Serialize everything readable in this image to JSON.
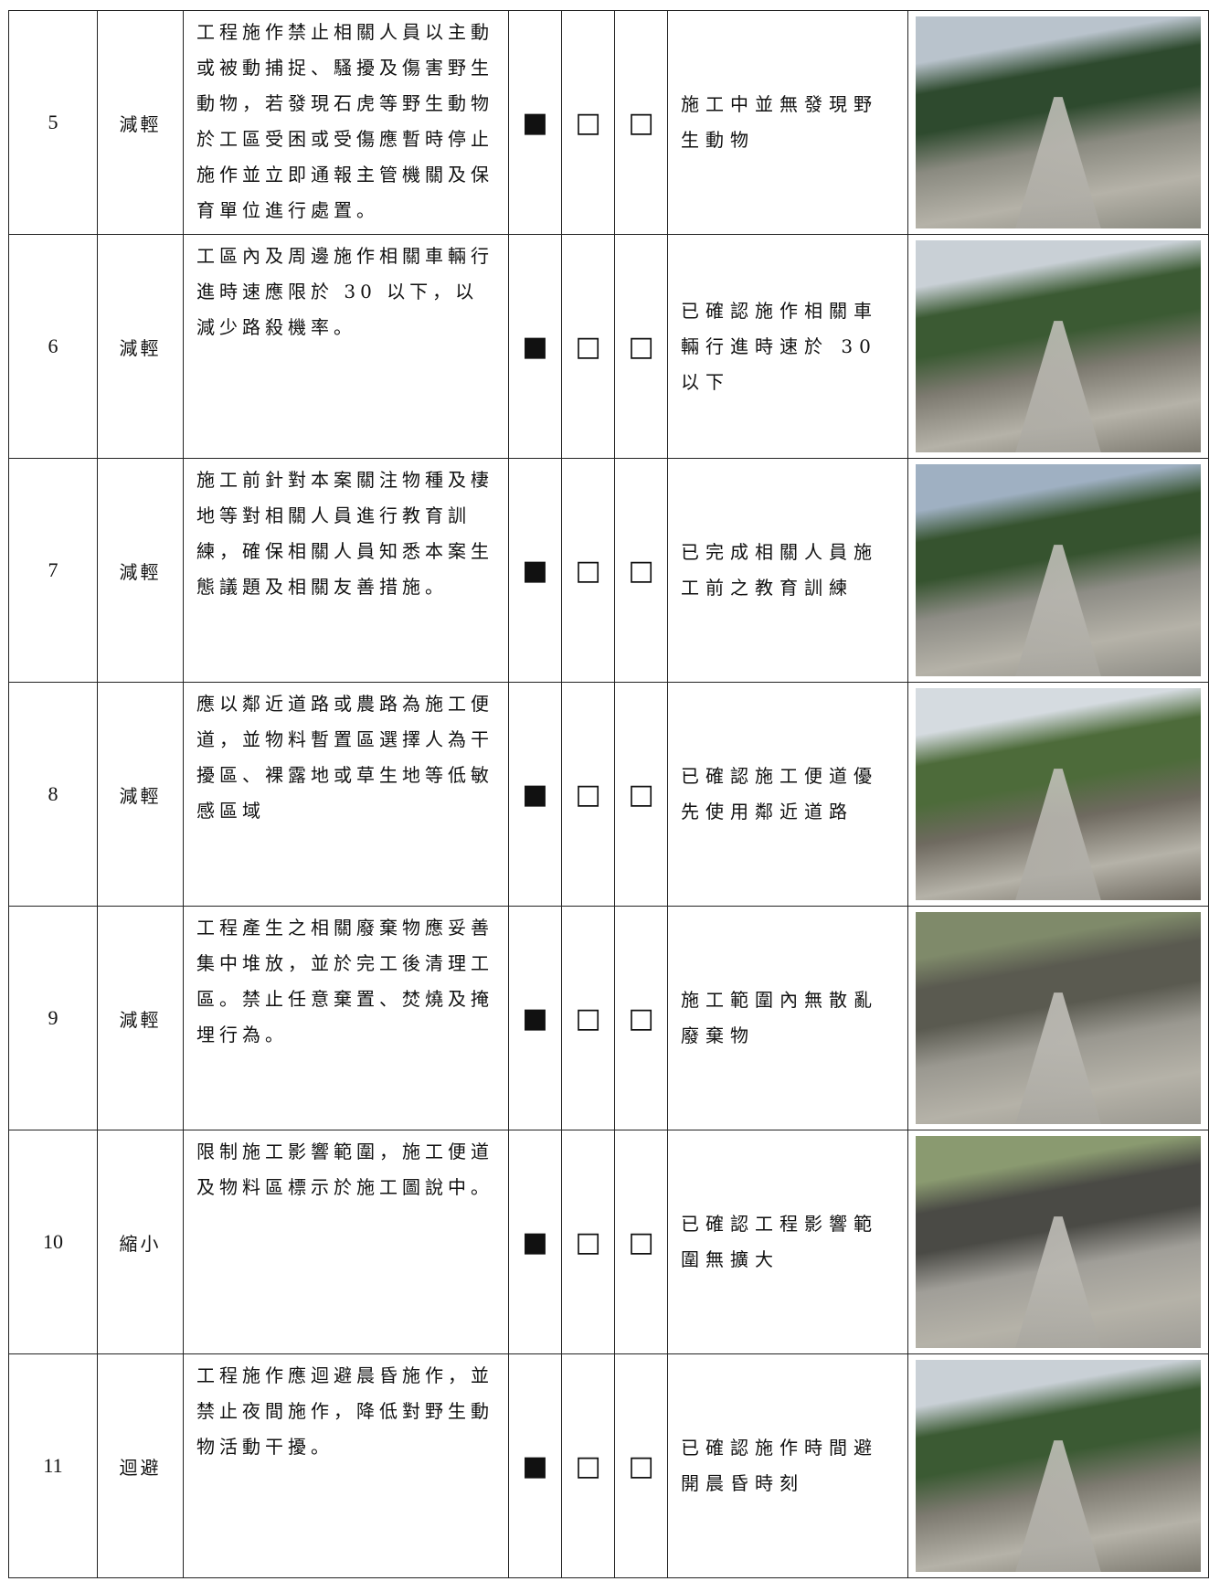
{
  "table": {
    "rows": [
      [
        "5",
        "減輕",
        "工程施作禁止相關人員以主動或被動捕捉、騷擾及傷害野生動物，若發現石虎等野生動物於工區受困或受傷應暫時停止施作並立即通報主管機關及保育單位進行處置。",
        "■",
        "□",
        "□",
        "施工中並無發現野生動物"
      ],
      [
        "6",
        "減輕",
        "工區內及周邊施作相關車輛行進時速應限於 30 以下，以減少路殺機率。",
        "■",
        "□",
        "□",
        "已確認施作相關車輛行進時速於 30 以下"
      ],
      [
        "7",
        "減輕",
        "施工前針對本案關注物種及棲地等對相關人員進行教育訓練，確保相關人員知悉本案生態議題及相關友善措施。",
        "■",
        "□",
        "□",
        "已完成相關人員施工前之教育訓練"
      ],
      [
        "8",
        "減輕",
        "應以鄰近道路或農路為施工便道，並物料暫置區選擇人為干擾區、裸露地或草生地等低敏感區域",
        "■",
        "□",
        "□",
        "已確認施工便道優先使用鄰近道路"
      ],
      [
        "9",
        "減輕",
        "工程產生之相關廢棄物應妥善集中堆放，並於完工後清理工區。禁止任意棄置、焚燒及掩埋行為。",
        "■",
        "□",
        "□",
        "施工範圍內無散亂廢棄物"
      ],
      [
        "10",
        "縮小",
        "限制施工影響範圍，施工便道及物料區標示於施工圖說中。",
        "■",
        "□",
        "□",
        "已確認工程影響範圍無擴大"
      ],
      [
        "11",
        "迴避",
        "工程施作應迴避晨昏施作，並禁止夜間施作，降低對野生動物活動干擾。",
        "■",
        "□",
        "□",
        "已確認施作時間避開晨昏時刻"
      ]
    ]
  }
}
